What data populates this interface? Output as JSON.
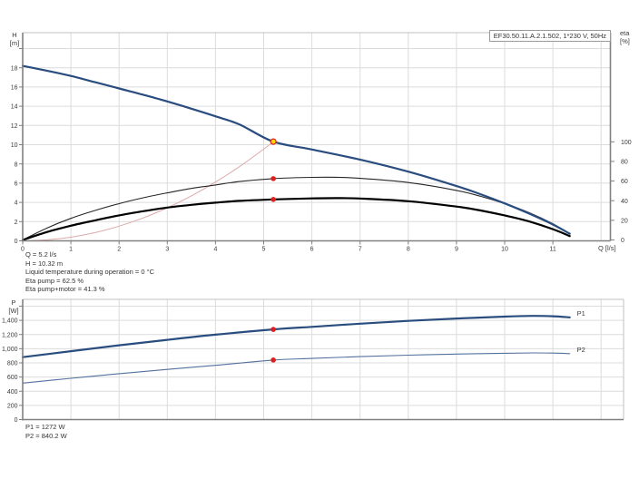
{
  "title": "EF30.50.11.A.2.1.502, 1*230 V, 50Hz",
  "colors": {
    "pump_curve": "#2a4d7f",
    "system_curve": "#dcaaaa",
    "eta_pump": "#262626",
    "eta_pump_motor": "#000000",
    "p1_curve": "#2a4d7f",
    "p2_curve": "#53719e",
    "marker_red": "#e01f1f",
    "marker_yellow": "#ffd800",
    "grid": "#dcdcdc",
    "axis": "#808080",
    "border_light": "#c2c2c2",
    "tick_text": "#3a3a3a",
    "series_label": "#4a6a96"
  },
  "axis_labels": {
    "head_unit": [
      "H",
      "[m]"
    ],
    "eta_unit": [
      "eta",
      "[%]"
    ],
    "power_unit": [
      "P",
      "[W]"
    ],
    "flow_unit": "Q [l/s]"
  },
  "annotations": {
    "operating_point_lines": [
      "Q = 5.2 l/s",
      "H = 10.32 m",
      "Liquid temperature during operation = 0 °C",
      "Eta pump = 62.5 %",
      "Eta pump+motor = 41.3 %"
    ],
    "power_lines": [
      "P1 = 1272 W",
      "P2 = 840.2 W"
    ]
  },
  "chart_data": [
    {
      "type": "line",
      "id": "hq-eta-chart",
      "title": "EF30.50.11.A.2.1.502, 1*230 V, 50Hz",
      "xlabel": "Q [l/s]",
      "ylabel": "H [m]",
      "y2label": "eta [%]",
      "xlim": [
        0,
        12.2
      ],
      "ylim": [
        0,
        21.6
      ],
      "y2lim": [
        0,
        100
      ],
      "x_ticks": [
        {
          "v": 0,
          "label": "0"
        },
        {
          "v": 1,
          "label": "1"
        },
        {
          "v": 2,
          "label": "2"
        },
        {
          "v": 3,
          "label": "3"
        },
        {
          "v": 4,
          "label": "4"
        },
        {
          "v": 5,
          "label": "5"
        },
        {
          "v": 6,
          "label": "6"
        },
        {
          "v": 7,
          "label": "7"
        },
        {
          "v": 8,
          "label": "8"
        },
        {
          "v": 9,
          "label": "9"
        },
        {
          "v": 10,
          "label": "10"
        },
        {
          "v": 11,
          "label": "11"
        }
      ],
      "y_ticks": [
        {
          "v": 0,
          "label": "0"
        },
        {
          "v": 2,
          "label": "2"
        },
        {
          "v": 4,
          "label": "4"
        },
        {
          "v": 6,
          "label": "6"
        },
        {
          "v": 8,
          "label": "8"
        },
        {
          "v": 10,
          "label": "10"
        },
        {
          "v": 12,
          "label": "12"
        },
        {
          "v": 14,
          "label": "14"
        },
        {
          "v": 16,
          "label": "16"
        },
        {
          "v": 18,
          "label": "18"
        },
        {
          "v": 20,
          "label": ""
        }
      ],
      "y2_ticks": [
        {
          "v": 0,
          "label": "0"
        },
        {
          "v": 20,
          "label": "20"
        },
        {
          "v": 40,
          "label": "40"
        },
        {
          "v": 60,
          "label": "60"
        },
        {
          "v": 80,
          "label": "80"
        },
        {
          "v": 100,
          "label": "100"
        }
      ],
      "grid_x": [
        1,
        2,
        3,
        4,
        5,
        6,
        7,
        8,
        9,
        10,
        11,
        12
      ],
      "grid_y": [
        2,
        4,
        6,
        8,
        10,
        12,
        14,
        16,
        18,
        20
      ],
      "series": [
        {
          "name": "system-curve",
          "axis": "h",
          "color_key": "system_curve",
          "width": 1,
          "points": [
            [
              0,
              0
            ],
            [
              0.5,
              0.1
            ],
            [
              1,
              0.38
            ],
            [
              1.5,
              0.86
            ],
            [
              2,
              1.53
            ],
            [
              2.5,
              2.39
            ],
            [
              3,
              3.44
            ],
            [
              3.5,
              4.68
            ],
            [
              4,
              6.11
            ],
            [
              4.5,
              7.73
            ],
            [
              5,
              9.54
            ],
            [
              5.2,
              10.32
            ]
          ]
        },
        {
          "name": "eta-pump",
          "axis": "eta",
          "color_key": "eta_pump",
          "width": 1.1,
          "points": [
            [
              0,
              0
            ],
            [
              0.5,
              12
            ],
            [
              1,
              22
            ],
            [
              1.5,
              30
            ],
            [
              2,
              37
            ],
            [
              2.5,
              43
            ],
            [
              3,
              48
            ],
            [
              3.5,
              52.5
            ],
            [
              4,
              56
            ],
            [
              4.5,
              59.5
            ],
            [
              5.2,
              62.5
            ],
            [
              6,
              63.8
            ],
            [
              6.5,
              63.9
            ],
            [
              7,
              62.8
            ],
            [
              8,
              58.5
            ],
            [
              9,
              50.5
            ],
            [
              9.5,
              44.5
            ],
            [
              10,
              37
            ],
            [
              10.5,
              28
            ],
            [
              11,
              16.5
            ],
            [
              11.35,
              6
            ]
          ]
        },
        {
          "name": "eta-pump-motor",
          "axis": "eta",
          "color_key": "eta_pump_motor",
          "width": 2.2,
          "points": [
            [
              0,
              0
            ],
            [
              0.5,
              8
            ],
            [
              1,
              14.5
            ],
            [
              1.5,
              20
            ],
            [
              2,
              25
            ],
            [
              2.5,
              29.3
            ],
            [
              3,
              33
            ],
            [
              3.5,
              35.8
            ],
            [
              4,
              38
            ],
            [
              4.5,
              39.8
            ],
            [
              5.2,
              41.3
            ],
            [
              6,
              42.3
            ],
            [
              6.5,
              42.6
            ],
            [
              7,
              42.2
            ],
            [
              8,
              39.5
            ],
            [
              9,
              34
            ],
            [
              9.5,
              30
            ],
            [
              10,
              25
            ],
            [
              10.5,
              19
            ],
            [
              11,
              11
            ],
            [
              11.35,
              4
            ]
          ]
        },
        {
          "name": "pump-hq-curve",
          "axis": "h",
          "color_key": "pump_curve",
          "width": 2.2,
          "points": [
            [
              0,
              18.2
            ],
            [
              0.5,
              17.7
            ],
            [
              1,
              17.15
            ],
            [
              1.5,
              16.5
            ],
            [
              2,
              15.85
            ],
            [
              2.5,
              15.2
            ],
            [
              3,
              14.5
            ],
            [
              3.5,
              13.75
            ],
            [
              4,
              12.95
            ],
            [
              4.5,
              12.1
            ],
            [
              5.2,
              10.32
            ],
            [
              6,
              9.5
            ],
            [
              7,
              8.45
            ],
            [
              8,
              7.2
            ],
            [
              9,
              5.7
            ],
            [
              9.5,
              4.85
            ],
            [
              10,
              3.9
            ],
            [
              10.5,
              2.85
            ],
            [
              11,
              1.7
            ],
            [
              11.35,
              0.75
            ]
          ]
        }
      ],
      "markers": [
        {
          "q": 5.2,
          "v": 10.32,
          "axis": "h",
          "kind": "duty",
          "name": "duty-point-marker"
        },
        {
          "q": 5.2,
          "v": 62.5,
          "axis": "eta",
          "kind": "point",
          "name": "eta-pump-marker"
        },
        {
          "q": 5.2,
          "v": 41.3,
          "axis": "eta",
          "kind": "point",
          "name": "eta-pump-motor-marker"
        }
      ]
    },
    {
      "type": "line",
      "id": "power-chart",
      "ylabel": "P [W]",
      "xlim": [
        0,
        12.47
      ],
      "ylim": [
        0,
        1700
      ],
      "y_ticks": [
        {
          "v": 0,
          "label": "0"
        },
        {
          "v": 200,
          "label": "200"
        },
        {
          "v": 400,
          "label": "400"
        },
        {
          "v": 600,
          "label": "600"
        },
        {
          "v": 800,
          "label": "800"
        },
        {
          "v": 1000,
          "label": "1,000"
        },
        {
          "v": 1200,
          "label": "1,200"
        },
        {
          "v": 1400,
          "label": "1,400"
        },
        {
          "v": 1600,
          "label": ""
        }
      ],
      "grid_x": [
        1,
        2,
        3,
        4,
        5,
        6,
        7,
        8,
        9,
        10,
        11,
        12
      ],
      "grid_y": [
        200,
        400,
        600,
        800,
        1000,
        1200,
        1400,
        1600
      ],
      "series": [
        {
          "name": "p2-curve",
          "axis": "p",
          "color_key": "p2_curve",
          "width": 1.1,
          "end_label": "P2",
          "points": [
            [
              0,
              515
            ],
            [
              1,
              582
            ],
            [
              2,
              648
            ],
            [
              3,
              708
            ],
            [
              4,
              765
            ],
            [
              5.2,
              840
            ],
            [
              6,
              862
            ],
            [
              7,
              888
            ],
            [
              8,
              908
            ],
            [
              9,
              924
            ],
            [
              10,
              935
            ],
            [
              10.6,
              940
            ],
            [
              11,
              938
            ],
            [
              11.35,
              930
            ]
          ]
        },
        {
          "name": "p1-curve",
          "axis": "p",
          "color_key": "p1_curve",
          "width": 2.2,
          "end_label": "P1",
          "points": [
            [
              0,
              880
            ],
            [
              1,
              965
            ],
            [
              2,
              1048
            ],
            [
              3,
              1125
            ],
            [
              4,
              1198
            ],
            [
              5.2,
              1272
            ],
            [
              6,
              1308
            ],
            [
              7,
              1352
            ],
            [
              8,
              1392
            ],
            [
              9,
              1425
            ],
            [
              10,
              1452
            ],
            [
              10.6,
              1462
            ],
            [
              11,
              1458
            ],
            [
              11.35,
              1442
            ]
          ]
        }
      ],
      "markers": [
        {
          "q": 5.2,
          "v": 1272,
          "axis": "p",
          "kind": "point",
          "name": "p1-duty-marker"
        },
        {
          "q": 5.2,
          "v": 840.2,
          "axis": "p",
          "kind": "point",
          "name": "p2-duty-marker"
        }
      ]
    }
  ]
}
